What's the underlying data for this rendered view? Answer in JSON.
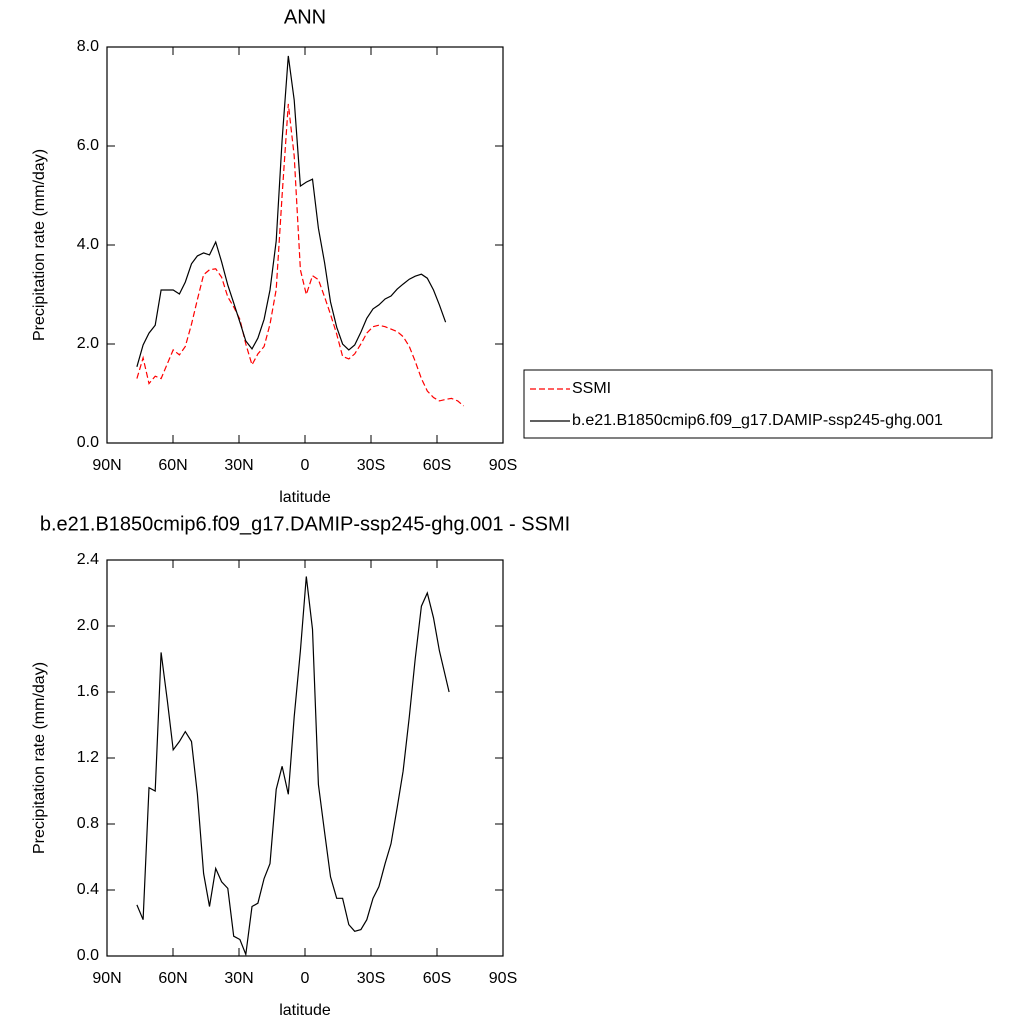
{
  "chart_data": [
    {
      "type": "line",
      "title": "ANN",
      "xlabel": "latitude",
      "ylabel": "Precipitation rate (mm/day)",
      "x": [
        76.4,
        73.6,
        70.9,
        68.1,
        65.4,
        62.6,
        59.9,
        57.1,
        54.4,
        51.6,
        48.9,
        46.1,
        43.4,
        40.6,
        37.9,
        35.1,
        32.4,
        29.6,
        26.9,
        24.1,
        21.4,
        18.6,
        15.9,
        13.1,
        10.4,
        7.6,
        4.9,
        2.1,
        -0.6,
        -3.4,
        -6.1,
        -8.9,
        -11.6,
        -14.4,
        -17.1,
        -19.9,
        -22.6,
        -25.4,
        -28.1,
        -30.9,
        -33.6,
        -36.4,
        -39.1,
        -41.9,
        -44.6,
        -47.4,
        -50.1,
        -52.9,
        -55.6,
        -58.4,
        -61.1,
        -63.9,
        -66.6,
        -69.4,
        -72.1
      ],
      "series": [
        {
          "name": "SSMI",
          "color": "#ff0000",
          "line_style": "dashed",
          "values": [
            1.3,
            1.72,
            1.2,
            1.35,
            1.3,
            1.6,
            1.88,
            1.78,
            1.95,
            2.4,
            2.9,
            3.4,
            3.5,
            3.52,
            3.35,
            2.95,
            2.75,
            2.5,
            2.0,
            1.58,
            1.8,
            1.95,
            2.4,
            3.1,
            5.0,
            6.85,
            5.8,
            3.5,
            3.0,
            3.38,
            3.3,
            2.95,
            2.6,
            2.2,
            1.75,
            1.7,
            1.8,
            2.0,
            2.22,
            2.35,
            2.38,
            2.35,
            2.3,
            2.25,
            2.15,
            1.95,
            1.65,
            1.3,
            1.05,
            0.92,
            0.85,
            0.88,
            0.9,
            0.85,
            0.75
          ]
        },
        {
          "name": "b.e21.B1850cmip6.f09_g17.DAMIP-ssp245-ghg.001",
          "color": "#000000",
          "line_style": "solid",
          "values": [
            1.54,
            1.98,
            2.22,
            2.38,
            3.09,
            3.09,
            3.09,
            3.01,
            3.25,
            3.62,
            3.78,
            3.84,
            3.8,
            4.06,
            3.66,
            3.19,
            2.83,
            2.44,
            2.06,
            1.9,
            2.12,
            2.5,
            3.09,
            4.08,
            6.12,
            7.82,
            6.93,
            5.19,
            5.27,
            5.33,
            4.34,
            3.64,
            2.85,
            2.34,
            2.0,
            1.88,
            1.98,
            2.24,
            2.52,
            2.71,
            2.79,
            2.91,
            2.97,
            3.11,
            3.21,
            3.31,
            3.37,
            3.41,
            3.33,
            3.09,
            2.79,
            2.44,
            null,
            null,
            null
          ]
        }
      ],
      "xlim": [
        90,
        -90
      ],
      "xticks": [
        {
          "value": 90,
          "label": "90N"
        },
        {
          "value": 60,
          "label": "60N"
        },
        {
          "value": 30,
          "label": "30N"
        },
        0,
        {
          "value": -30,
          "label": "30S"
        },
        {
          "value": -60,
          "label": "60S"
        },
        {
          "value": -90,
          "label": "90S"
        }
      ],
      "ylim": [
        0,
        8
      ],
      "yticks": [
        {
          "value": 0,
          "label": "0.0"
        },
        {
          "value": 2,
          "label": "2.0"
        },
        {
          "value": 4,
          "label": "4.0"
        },
        {
          "value": 6,
          "label": "6.0"
        },
        {
          "value": 8,
          "label": "8.0"
        }
      ],
      "legend": "right"
    },
    {
      "type": "line",
      "title": "b.e21.B1850cmip6.f09_g17.DAMIP-ssp245-ghg.001 - SSMI",
      "xlabel": "latitude",
      "ylabel": "Precipitation rate (mm/day)",
      "x": [
        76.4,
        73.6,
        70.9,
        68.1,
        65.4,
        62.6,
        59.9,
        57.1,
        54.4,
        51.6,
        48.9,
        46.1,
        43.4,
        40.6,
        37.9,
        35.1,
        32.4,
        29.6,
        26.9,
        24.1,
        21.4,
        18.6,
        15.9,
        13.1,
        10.4,
        7.6,
        4.9,
        2.1,
        -0.6,
        -3.4,
        -6.1,
        -8.9,
        -11.6,
        -14.4,
        -17.1,
        -19.9,
        -22.6,
        -25.4,
        -28.1,
        -30.9,
        -33.6,
        -36.4,
        -39.1,
        -41.9,
        -44.6,
        -47.4,
        -50.1,
        -52.9,
        -55.6,
        -58.4,
        -61.1,
        -65.5
      ],
      "series": [
        {
          "color": "#000000",
          "line_style": "solid",
          "values": [
            0.31,
            0.22,
            1.02,
            1.0,
            1.84,
            1.55,
            1.25,
            1.3,
            1.36,
            1.3,
            0.98,
            0.5,
            0.3,
            0.53,
            0.45,
            0.41,
            0.12,
            0.1,
            0.01,
            0.3,
            0.32,
            0.47,
            0.56,
            1.01,
            1.15,
            0.98,
            1.45,
            1.85,
            2.3,
            1.98,
            1.04,
            0.75,
            0.48,
            0.35,
            0.35,
            0.19,
            0.15,
            0.16,
            0.22,
            0.35,
            0.42,
            0.56,
            0.68,
            0.9,
            1.12,
            1.45,
            1.8,
            2.12,
            2.2,
            2.05,
            1.85,
            1.6
          ]
        }
      ],
      "xlim": [
        90,
        -90
      ],
      "xticks": [
        {
          "value": 90,
          "label": "90N"
        },
        {
          "value": 60,
          "label": "60N"
        },
        {
          "value": 30,
          "label": "30N"
        },
        0,
        {
          "value": -30,
          "label": "30S"
        },
        {
          "value": -60,
          "label": "60S"
        },
        {
          "value": -90,
          "label": "90S"
        }
      ],
      "ylim": [
        0,
        2.4
      ],
      "yticks": [
        {
          "value": 0,
          "label": "0.0"
        },
        0.4,
        0.8,
        1.2,
        1.6,
        {
          "value": 2,
          "label": "2.0"
        },
        {
          "value": 2.4,
          "label": "2.4"
        }
      ]
    }
  ]
}
